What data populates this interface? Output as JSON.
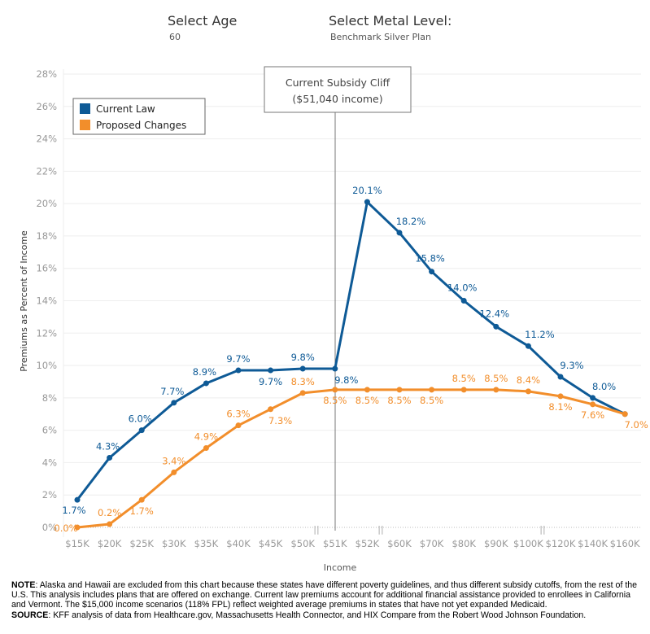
{
  "controls": {
    "age": {
      "label": "Select Age",
      "value": "60"
    },
    "metal": {
      "label": "Select Metal Level:",
      "value": "Benchmark Silver Plan"
    }
  },
  "colors": {
    "current_law": "#0e5a96",
    "proposed": "#f28e2b"
  },
  "chart_data": {
    "type": "line",
    "xlabel": "Income",
    "ylabel": "Premiums as Percent of Income",
    "ylim": [
      0,
      28
    ],
    "yticks": [
      "0%",
      "2%",
      "4%",
      "6%",
      "8%",
      "10%",
      "12%",
      "14%",
      "16%",
      "18%",
      "20%",
      "22%",
      "24%",
      "26%",
      "28%"
    ],
    "grid": true,
    "legend": "top-left",
    "categories": [
      "$15K",
      "$20K",
      "$25K",
      "$30K",
      "$35K",
      "$40K",
      "$45K",
      "$50K",
      "$51K",
      "$52K",
      "$60K",
      "$70K",
      "$80K",
      "$90K",
      "$100K",
      "$120K",
      "$140K",
      "$160K"
    ],
    "series": [
      {
        "name": "Current Law",
        "values": [
          1.7,
          4.3,
          6.0,
          7.7,
          8.9,
          9.7,
          9.7,
          9.8,
          9.8,
          20.1,
          18.2,
          15.8,
          14.0,
          12.4,
          11.2,
          9.3,
          8.0,
          7.0
        ],
        "labels": [
          "1.7%",
          "4.3%",
          "6.0%",
          "7.7%",
          "8.9%",
          "9.7%",
          "9.7%",
          "9.8%",
          "9.8%",
          "20.1%",
          "18.2%",
          "15.8%",
          "14.0%",
          "12.4%",
          "11.2%",
          "9.3%",
          "8.0%",
          ""
        ]
      },
      {
        "name": "Proposed Changes",
        "values": [
          0.0,
          0.2,
          1.7,
          3.4,
          4.9,
          6.3,
          7.3,
          8.3,
          8.5,
          8.5,
          8.5,
          8.5,
          8.5,
          8.5,
          8.4,
          8.1,
          7.6,
          7.0
        ],
        "labels": [
          "0.0%",
          "0.2%",
          "1.7%",
          "3.4%",
          "4.9%",
          "6.3%",
          "7.3%",
          "8.3%",
          "8.5%",
          "8.5%",
          "8.5%",
          "8.5%",
          "8.5%",
          "8.5%",
          "8.4%",
          "8.1%",
          "7.6%",
          "7.0%"
        ]
      }
    ],
    "annotation": {
      "line1": "Current Subsidy Cliff",
      "line2": "($51,040 income)",
      "at": "$51K"
    }
  },
  "footnote": {
    "note_label": "NOTE",
    "note_text": ": Alaska and Hawaii are excluded from this chart because these states have different poverty guidelines, and thus different subsidy cutoffs, from the rest of the U.S. This analysis includes plans that are offered on exchange. Current law premiums account for additional financial assistance provided to enrollees in California and Vermont. The $15,000 income scenarios (118% FPL) reflect weighted average premiums in states that have not yet expanded Medicaid.",
    "source_label": "SOURCE",
    "source_text": ": KFF analysis of data from Healthcare.gov, Massachusetts Health Connector, and HIX Compare from the Robert Wood Johnson Foundation."
  }
}
